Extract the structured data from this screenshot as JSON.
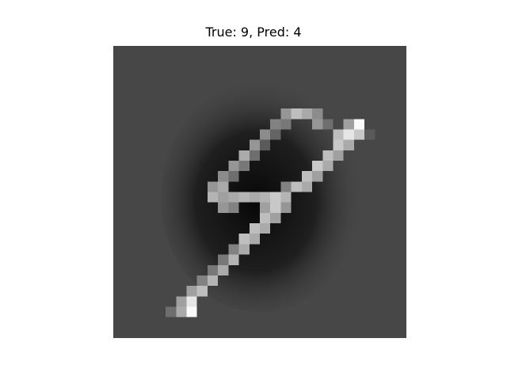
{
  "title": "True: 9, Pred: 4",
  "image": {
    "description_icon": "handwritten-digit-image",
    "background_color": "#474747",
    "stroke_color": "#cfcfcf",
    "highlight_color": "#ffffff",
    "shadow_color": "#0a0a0a"
  }
}
